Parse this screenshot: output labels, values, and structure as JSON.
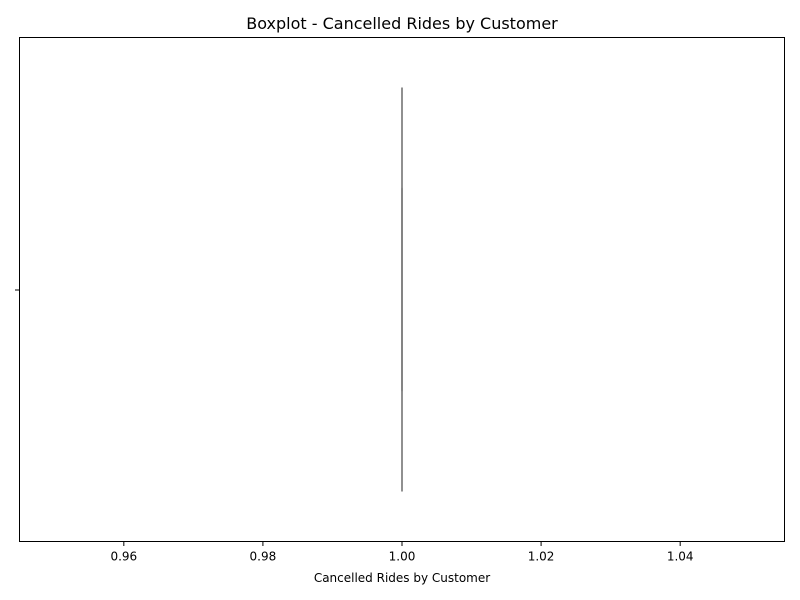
{
  "chart_data": {
    "type": "boxplot",
    "orientation": "horizontal",
    "title": "Boxplot - Cancelled Rides by Customer",
    "xlabel": "Cancelled Rides by Customer",
    "ylabel": "",
    "xlim": [
      0.945,
      1.055
    ],
    "x_ticks": [
      0.96,
      0.98,
      1.0,
      1.02,
      1.04
    ],
    "x_tick_labels": [
      "0.96",
      "0.98",
      "1.00",
      "1.02",
      "1.04"
    ],
    "grid": false,
    "series": [
      {
        "min": 1.0,
        "q1": 1.0,
        "median": 1.0,
        "q3": 1.0,
        "max": 1.0,
        "color": "#808080"
      }
    ]
  }
}
